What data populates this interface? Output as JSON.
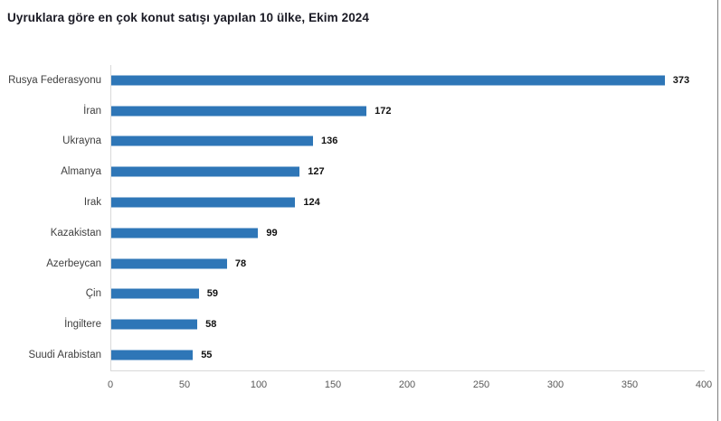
{
  "title": "Uyruklara göre en çok konut satışı yapılan 10 ülke, Ekim 2024",
  "colors": {
    "bar": "#2e76b7",
    "title": "#1a1a24",
    "category_label": "#404040",
    "value_label": "#111111",
    "tick_label": "#595959",
    "axis_line": "#d9d9d9",
    "window_edge": "#7d7d7d",
    "background": "#ffffff"
  },
  "chart_data": {
    "type": "bar",
    "orientation": "horizontal",
    "title": "Uyruklara göre en çok konut satışı yapılan 10 ülke, Ekim 2024",
    "categories": [
      "Rusya Federasyonu",
      "İran",
      "Ukrayna",
      "Almanya",
      "Irak",
      "Kazakistan",
      "Azerbeycan",
      "Çin",
      "İngiltere",
      "Suudi Arabistan"
    ],
    "values": [
      373,
      172,
      136,
      127,
      124,
      99,
      78,
      59,
      58,
      55
    ],
    "xlabel": "",
    "ylabel": "",
    "xlim": [
      0,
      400
    ],
    "xticks": [
      0,
      50,
      100,
      150,
      200,
      250,
      300,
      350,
      400
    ],
    "grid": false,
    "legend": false,
    "value_labels": true
  }
}
